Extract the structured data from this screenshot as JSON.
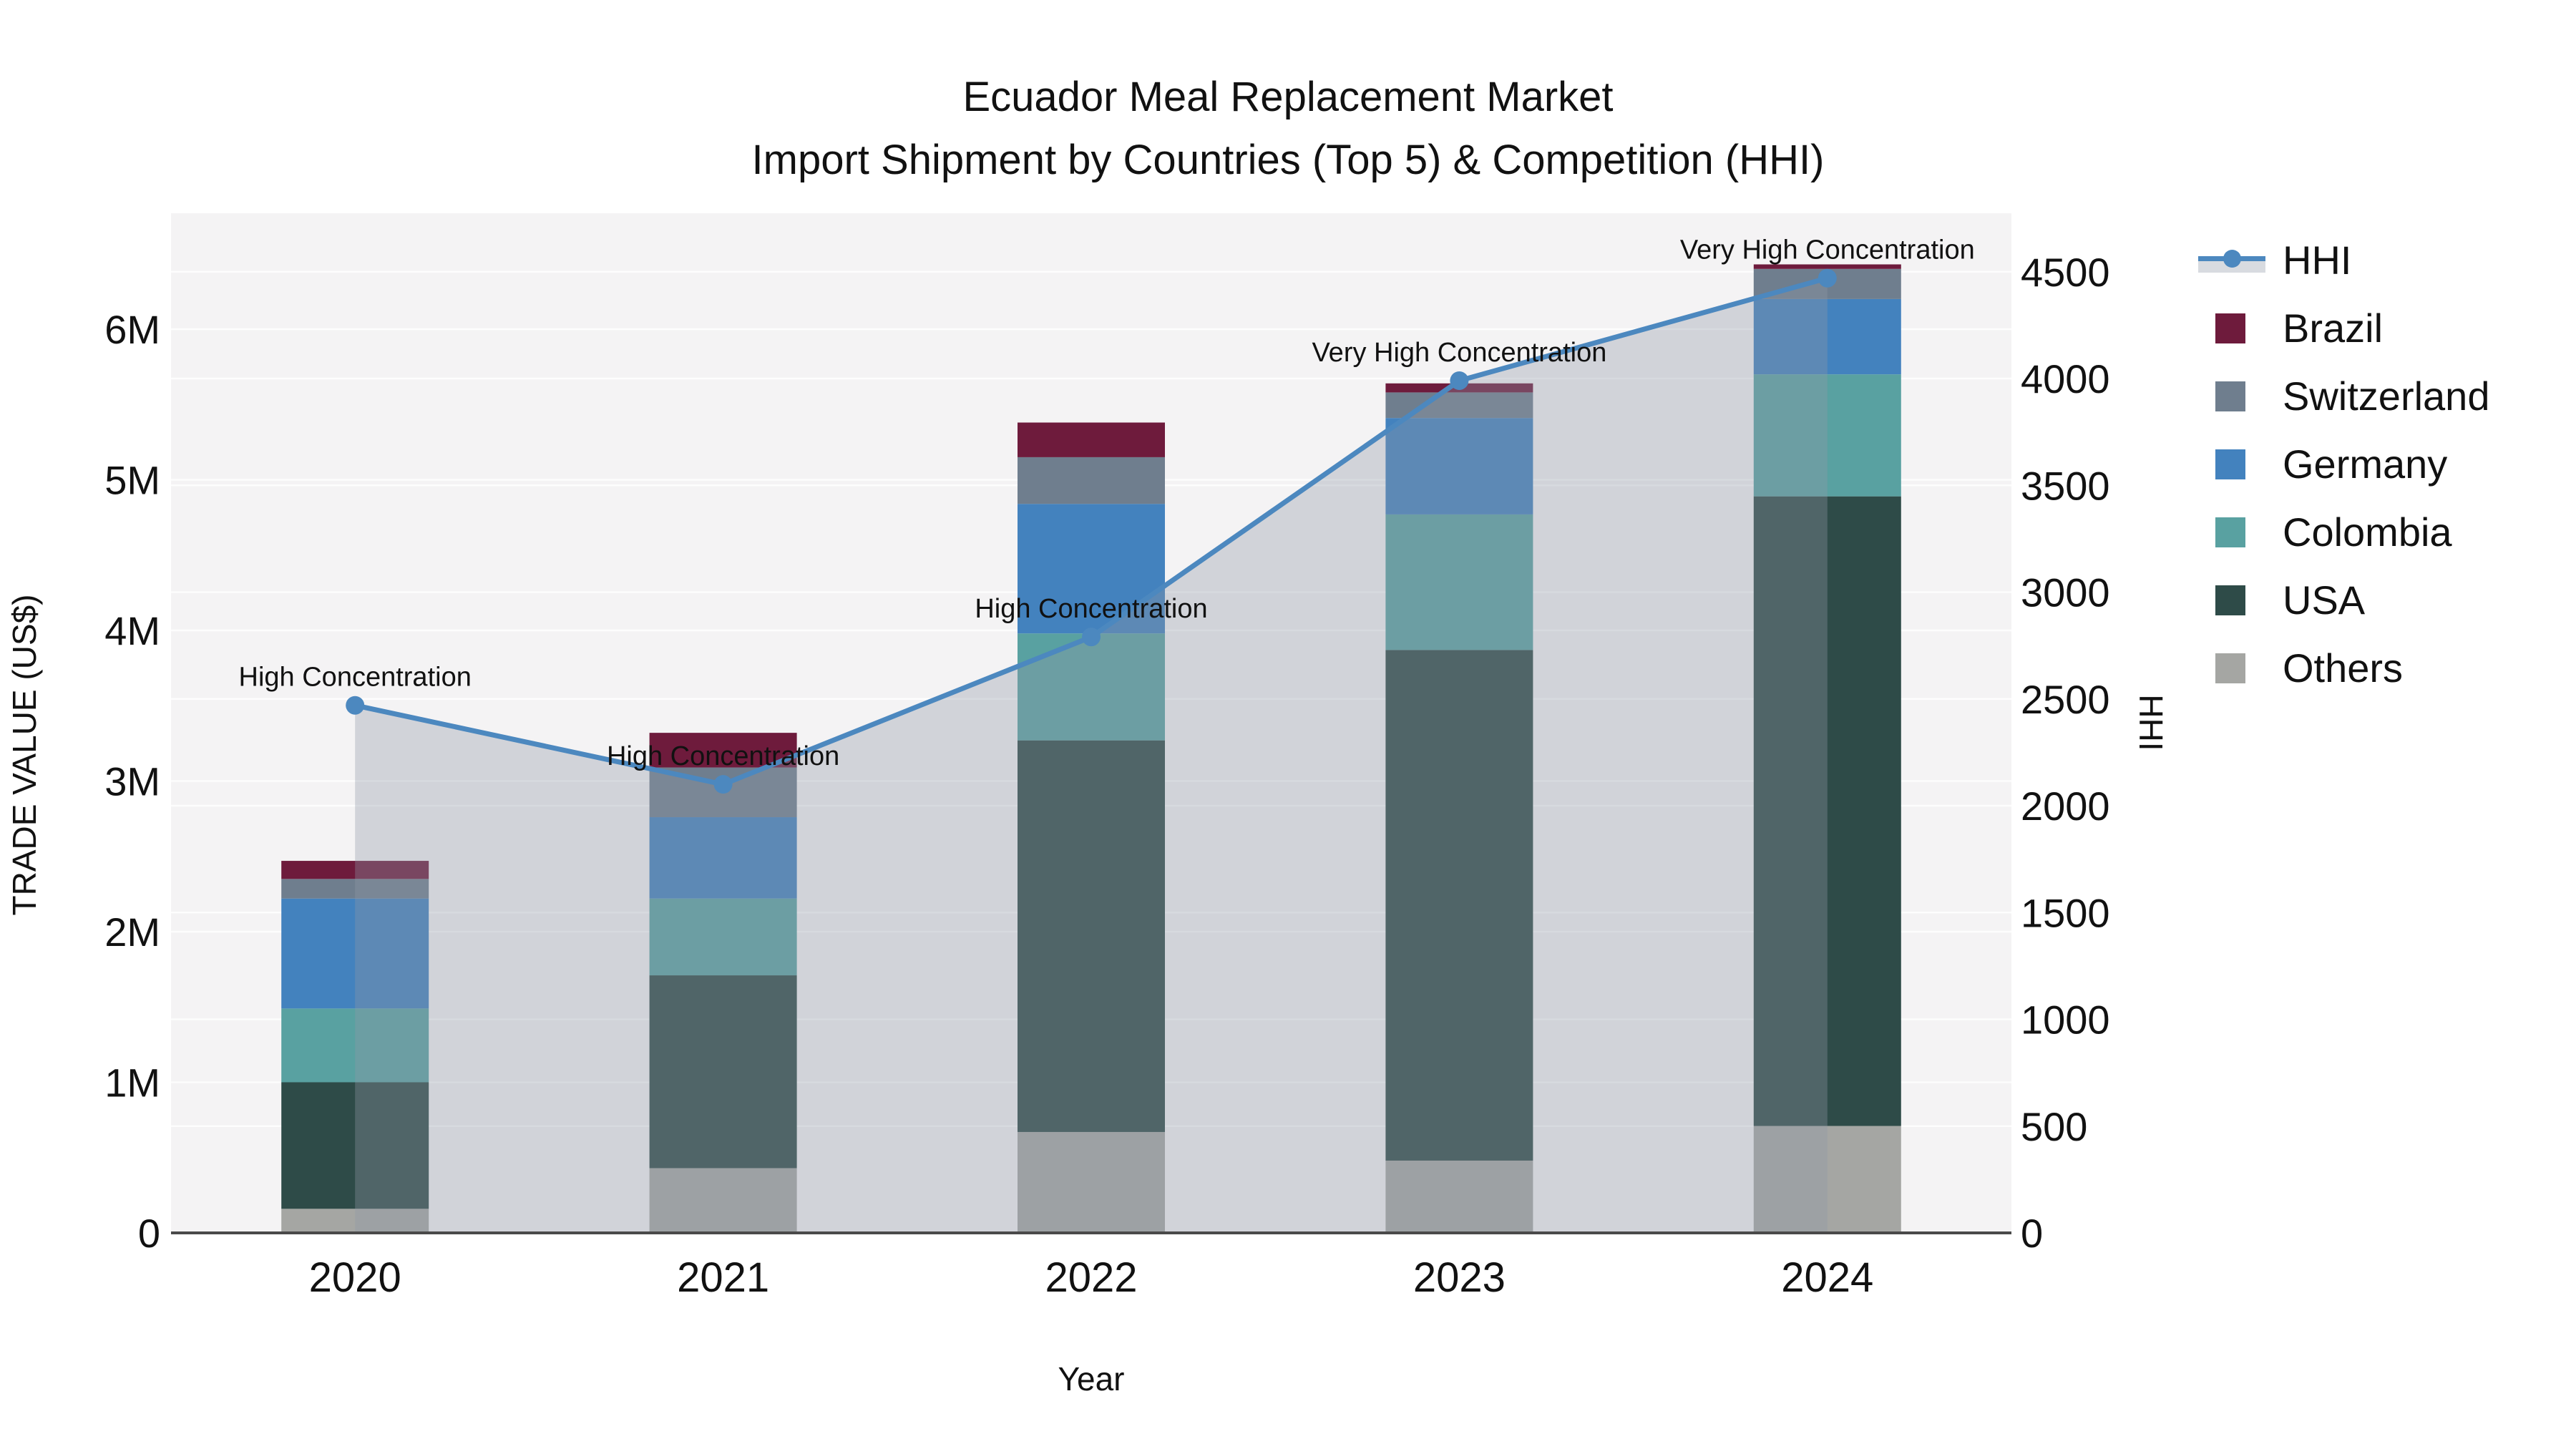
{
  "title": {
    "line1": "Ecuador Meal Replacement Market",
    "line2": "Import Shipment by Countries (Top 5) & Competition (HHI)"
  },
  "colors": {
    "plot_background": "#F4F3F4",
    "gridline": "#FFFFFF",
    "axis_line": "#4A4A4A",
    "hhi_line": "#4C88BF",
    "hhi_area_fill": "#8E99A6",
    "hhi_area_alpha": 0.35,
    "brazil": "#6E1B3C",
    "switzerland": "#6F7E8E",
    "germany": "#4382BE",
    "colombia": "#59A1A1",
    "usa": "#2E4B48",
    "others": "#A5A6A3",
    "text": "#111111"
  },
  "legend": {
    "items": [
      {
        "id": "hhi",
        "label": "HHI",
        "swatch": "line-marker-band"
      },
      {
        "id": "brazil",
        "label": "Brazil",
        "swatch": "square",
        "color": "#6E1B3C"
      },
      {
        "id": "switzerland",
        "label": "Switzerland",
        "swatch": "square",
        "color": "#6F7E8E"
      },
      {
        "id": "germany",
        "label": "Germany",
        "swatch": "square",
        "color": "#4382BE"
      },
      {
        "id": "colombia",
        "label": "Colombia",
        "swatch": "square",
        "color": "#59A1A1"
      },
      {
        "id": "usa",
        "label": "USA",
        "swatch": "square",
        "color": "#2E4B48"
      },
      {
        "id": "others",
        "label": "Others",
        "swatch": "square",
        "color": "#A5A6A3"
      }
    ]
  },
  "chart_data": {
    "type": "combo-stacked-bar-line",
    "title": "Ecuador Meal Replacement Market",
    "subtitle": "Import Shipment by Countries (Top 5) & Competition (HHI)",
    "xlabel": "Year",
    "ylabel_left": "TRADE VALUE (US$)",
    "ylabel_right": "HHI",
    "categories": [
      "2020",
      "2021",
      "2022",
      "2023",
      "2024"
    ],
    "bar_series_bottom_to_top": [
      {
        "name": "Others",
        "color_key": "others",
        "values_musd": [
          0.16,
          0.43,
          0.67,
          0.48,
          0.71
        ]
      },
      {
        "name": "USA",
        "color_key": "usa",
        "values_musd": [
          0.84,
          1.28,
          2.6,
          3.39,
          4.18
        ]
      },
      {
        "name": "Colombia",
        "color_key": "colombia",
        "values_musd": [
          0.49,
          0.51,
          0.71,
          0.9,
          0.81
        ]
      },
      {
        "name": "Germany",
        "color_key": "germany",
        "values_musd": [
          0.73,
          0.54,
          0.86,
          0.64,
          0.5
        ]
      },
      {
        "name": "Switzerland",
        "color_key": "switzerland",
        "values_musd": [
          0.13,
          0.33,
          0.31,
          0.17,
          0.2
        ]
      },
      {
        "name": "Brazil",
        "color_key": "brazil",
        "values_musd": [
          0.12,
          0.23,
          0.23,
          0.06,
          0.03
        ]
      }
    ],
    "bar_totals_musd": [
      2.47,
      3.32,
      5.38,
      5.64,
      6.43
    ],
    "line_series": {
      "name": "HHI",
      "values": [
        2470,
        2100,
        2790,
        3990,
        4470
      ],
      "has_area_fill": true,
      "markers": "circle"
    },
    "annotations": [
      {
        "year": "2020",
        "text": "High Concentration"
      },
      {
        "year": "2021",
        "text": "High Concentration"
      },
      {
        "year": "2022",
        "text": "High Concentration"
      },
      {
        "year": "2023",
        "text": "Very High Concentration"
      },
      {
        "year": "2024",
        "text": "Very High Concentration"
      }
    ],
    "y_left_ticks": [
      "0",
      "1M",
      "2M",
      "3M",
      "4M",
      "5M",
      "6M"
    ],
    "y_left_tick_values_musd": [
      0,
      1,
      2,
      3,
      4,
      5,
      6
    ],
    "y_right_ticks": [
      "0",
      "500",
      "1000",
      "1500",
      "2000",
      "2500",
      "3000",
      "3500",
      "4000",
      "4500"
    ],
    "y_right_tick_values": [
      0,
      500,
      1000,
      1500,
      2000,
      2500,
      3000,
      3500,
      4000,
      4500
    ],
    "ylim_left_musd": [
      0,
      6.77
    ],
    "ylim_right": [
      0,
      4750
    ],
    "grid": true,
    "legend_position": "right"
  }
}
